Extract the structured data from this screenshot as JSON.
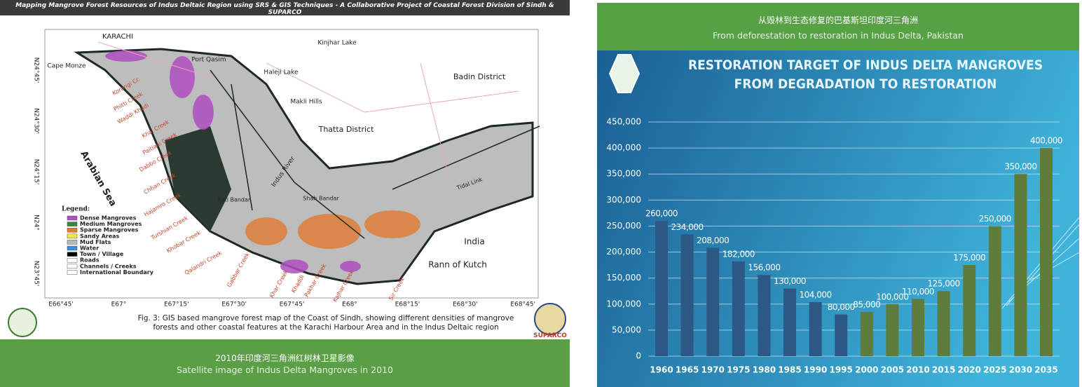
{
  "map": {
    "header": "Mapping Mangrove Forest Resources of Indus Deltaic Region using SRS & GIS Techniques - A Collaborative Project of Coastal Forest Division of Sindh  &  SUPARCO",
    "places": [
      "KARACHI",
      "Cape Monze",
      "Port Qasim",
      "Kinjhar Lake",
      "Haleji Lake",
      "Makli Hills",
      "Thatta  District",
      "Badin District",
      "Arabian Sea",
      "Indus River",
      "Keti Bandar",
      "Shah Bandar",
      "Tidal Link",
      "India",
      "Rann of Kutch"
    ],
    "creeks": [
      "Korangi Cr.",
      "Phitti Creek",
      "Waddi Khudi",
      "Khai Creek",
      "Paitiani Creek",
      "Dabbo Creek",
      "Chhan Creek",
      "Hajamro Creek",
      "Turshian Creek",
      "Khobar Creek",
      "Qalandri Creek",
      "Gabbar Creek",
      "Khar Creek",
      "Khaddi",
      "Pakhar Creek",
      "Kajhar Creek",
      "Sir Creek"
    ],
    "longitudes": [
      "E66°45'",
      "E67°",
      "E67°15'",
      "E67°30'",
      "E67°45'",
      "E68°",
      "E68°15'",
      "E68°30'",
      "E68°45'"
    ],
    "latitudes": [
      "N24°45'",
      "N24°30'",
      "N24°15'",
      "N24°",
      "N23°45'"
    ],
    "legend": {
      "title": "Legend:",
      "items": [
        {
          "label": "Dense Mangroves",
          "color": "#b04fc0"
        },
        {
          "label": "Medium Mangroves",
          "color": "#2f8a3a"
        },
        {
          "label": "Sparse Mangroves",
          "color": "#e07a2e"
        },
        {
          "label": "Sandy Areas",
          "color": "#f0e84a"
        },
        {
          "label": "Mud Flats",
          "color": "#b8b8b8"
        },
        {
          "label": "Water",
          "color": "#3a8fd8"
        },
        {
          "label": "Town / Village",
          "color": "#000000"
        },
        {
          "label": "Roads",
          "color": "#ffffff"
        },
        {
          "label": "Channels / Creeks",
          "color": "#ffffff"
        },
        {
          "label": "International Boundary",
          "color": "#ffffff"
        }
      ]
    },
    "caption": "Fig. 3: GIS based mangrove forest map of the Coast of Sindh, showing different densities of mangrove forests and other coastal features at the Karachi Harbour Area and in the Indus Deltaic region",
    "logo_text": "SUPARCO",
    "footer_cn": "2010年印度河三角洲红树林卫星影像",
    "footer_en": "Satellite image of Indus Delta Mangroves in 2010"
  },
  "panel": {
    "header_cn": "从毁林到生态修复的巴基斯坦印度河三角洲",
    "header_en": "From deforestation to restoration in Indus Delta, Pakistan"
  },
  "chart_data": {
    "type": "bar",
    "title": "RESTORATION TARGET OF INDUS DELTA MANGROVES FROM DEGRADATION TO RESTORATION",
    "categories": [
      "1960",
      "1965",
      "1970",
      "1975",
      "1980",
      "1985",
      "1990",
      "1995",
      "2000",
      "2005",
      "2010",
      "2015",
      "2020",
      "2025",
      "2030",
      "2035"
    ],
    "values": [
      260000,
      234000,
      208000,
      182000,
      156000,
      130000,
      104000,
      80000,
      85000,
      100000,
      110000,
      125000,
      175000,
      250000,
      350000,
      400000
    ],
    "value_labels": [
      "260,000",
      "234,000",
      "208,000",
      "182,000",
      "156,000",
      "130,000",
      "104,000",
      "80,000",
      "85,000",
      "100,000",
      "110,000",
      "125,000",
      "175,000",
      "250,000",
      "350,000",
      "400,000"
    ],
    "colors": [
      "#2d5886",
      "#2d5886",
      "#2d5886",
      "#2d5886",
      "#2d5886",
      "#2d5886",
      "#2d5886",
      "#2d5886",
      "#5e7d3c",
      "#5e7d3c",
      "#5e7d3c",
      "#5e7d3c",
      "#5e7d3c",
      "#5e7d3c",
      "#5e7d3c",
      "#5e7d3c"
    ],
    "ylim": [
      0,
      450000
    ],
    "yticks": [
      0,
      {
        "value": 50000,
        "label": "50,000"
      },
      {
        "value": 100000,
        "label": "100,000"
      },
      {
        "value": 150000,
        "label": "150,000"
      },
      {
        "value": 200000,
        "label": "200,000"
      },
      {
        "value": 250000,
        "label": "250,000"
      },
      {
        "value": 300000,
        "label": "300,000"
      },
      {
        "value": 350000,
        "label": "350,000"
      },
      {
        "value": 400000,
        "label": "400,000"
      },
      {
        "value": 450000,
        "label": "450,000"
      }
    ],
    "grid": true
  }
}
